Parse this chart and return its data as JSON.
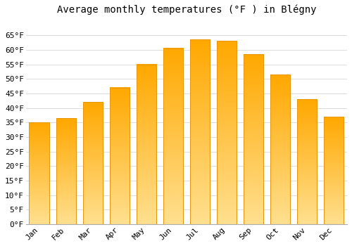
{
  "title": "Average monthly temperatures (°F ) in Blégny",
  "months": [
    "Jan",
    "Feb",
    "Mar",
    "Apr",
    "May",
    "Jun",
    "Jul",
    "Aug",
    "Sep",
    "Oct",
    "Nov",
    "Dec"
  ],
  "values": [
    35,
    36.5,
    42,
    47,
    55,
    60.5,
    63.5,
    63,
    58.5,
    51.5,
    43,
    37
  ],
  "bar_color_face": "#FFC125",
  "bar_color_edge": "#E8960A",
  "bar_color_bottom": "#FFE080",
  "background_color": "#FFFFFF",
  "grid_color": "#DDDDDD",
  "ylim": [
    0,
    70
  ],
  "yticks": [
    0,
    5,
    10,
    15,
    20,
    25,
    30,
    35,
    40,
    45,
    50,
    55,
    60,
    65
  ],
  "ylabel_suffix": "°F",
  "title_fontsize": 10,
  "tick_fontsize": 8,
  "font_family": "monospace"
}
